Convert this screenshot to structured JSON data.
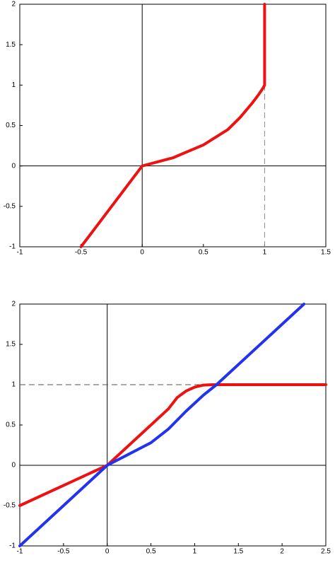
{
  "chart_data": [
    {
      "type": "line",
      "xlim": [
        -1,
        1.5
      ],
      "ylim": [
        -1,
        2
      ],
      "xticks": [
        -1,
        -0.5,
        0,
        0.5,
        1,
        1.5
      ],
      "yticks": [
        -1,
        -0.5,
        0,
        0.5,
        1,
        1.5,
        2
      ],
      "zero_axes": true,
      "series": [
        {
          "color": "#888888",
          "dashed": true,
          "width": 1,
          "x": [
            1,
            1
          ],
          "values": [
            -1,
            1
          ]
        },
        {
          "color": "#ee1111",
          "dashed": false,
          "width": 4,
          "x": [
            -0.5,
            0,
            0.25,
            0.5,
            0.7,
            0.8,
            0.9,
            0.95,
            0.99,
            1,
            1
          ],
          "values": [
            -1,
            0,
            0.1,
            0.26,
            0.45,
            0.6,
            0.78,
            0.88,
            0.97,
            1,
            2
          ]
        }
      ]
    },
    {
      "type": "line",
      "xlim": [
        -1,
        2.5
      ],
      "ylim": [
        -1,
        2
      ],
      "xticks": [
        -1,
        -0.5,
        0,
        0.5,
        1,
        1.5,
        2,
        2.5
      ],
      "yticks": [
        -1,
        -0.5,
        0,
        0.5,
        1,
        1.5,
        2
      ],
      "zero_axes": true,
      "series": [
        {
          "color": "#555555",
          "dashed": true,
          "width": 1,
          "x": [
            -1,
            1.2
          ],
          "values": [
            1,
            1
          ]
        },
        {
          "color": "#ee1111",
          "dashed": false,
          "width": 4,
          "x": [
            -1,
            0,
            0.5,
            0.7,
            0.8,
            0.9,
            1,
            1.1,
            1.2,
            2.5
          ],
          "values": [
            -0.5,
            0,
            0.5,
            0.7,
            0.84,
            0.92,
            0.97,
            0.995,
            1,
            1
          ]
        },
        {
          "color": "#2233ee",
          "dashed": false,
          "width": 4,
          "x": [
            -1,
            0,
            0.25,
            0.5,
            0.7,
            0.9,
            1.1,
            1.25,
            2.25
          ],
          "values": [
            -1,
            0,
            0.14,
            0.28,
            0.45,
            0.67,
            0.87,
            1,
            2
          ]
        }
      ]
    }
  ]
}
